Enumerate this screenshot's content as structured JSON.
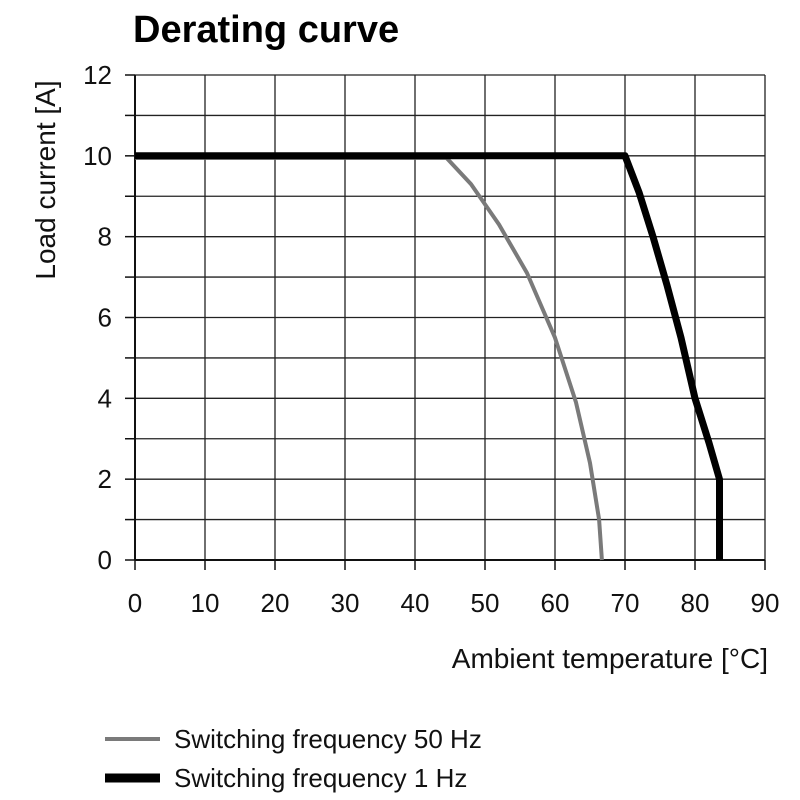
{
  "chart_data": {
    "type": "line",
    "title": "Derating curve",
    "xlabel": "Ambient temperature [°C]",
    "ylabel": "Load current [A]",
    "xlim": [
      0,
      90
    ],
    "ylim": [
      0,
      12
    ],
    "x_ticks": [
      0,
      10,
      20,
      30,
      40,
      50,
      60,
      70,
      80,
      90
    ],
    "y_ticks": [
      0,
      2,
      4,
      6,
      8,
      10,
      12
    ],
    "x_grid_step": 10,
    "y_grid_step": 1,
    "grid": true,
    "legend_position": "bottom-left",
    "series": [
      {
        "name": "Switching frequency 50 Hz",
        "color": "#7a7a7a",
        "points": [
          [
            0,
            9.95
          ],
          [
            44.5,
            9.95
          ],
          [
            48,
            9.3
          ],
          [
            52,
            8.3
          ],
          [
            56,
            7.1
          ],
          [
            60,
            5.5
          ],
          [
            63,
            3.9
          ],
          [
            65,
            2.4
          ],
          [
            66.3,
            1.0
          ],
          [
            66.7,
            0
          ]
        ]
      },
      {
        "name": "Switching frequency 1 Hz",
        "color": "#000000",
        "points": [
          [
            0,
            10
          ],
          [
            70,
            10
          ],
          [
            72,
            9.1
          ],
          [
            74,
            8.0
          ],
          [
            76,
            6.8
          ],
          [
            78,
            5.5
          ],
          [
            80,
            4.0
          ],
          [
            82,
            2.9
          ],
          [
            83.5,
            2.0
          ],
          [
            83.5,
            0
          ]
        ]
      }
    ]
  }
}
